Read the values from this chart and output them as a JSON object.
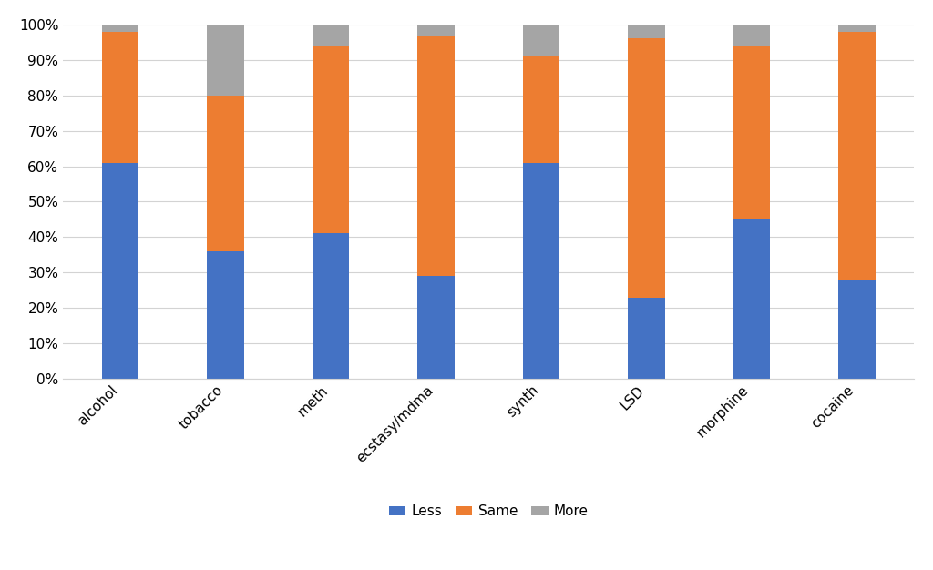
{
  "categories": [
    "alcohol",
    "tobacco",
    "meth",
    "ecstasy/mdma",
    "synth",
    "LSD",
    "morphine",
    "cocaine"
  ],
  "less": [
    61,
    36,
    41,
    29,
    61,
    23,
    45,
    28
  ],
  "same": [
    37,
    44,
    53,
    68,
    30,
    73,
    49,
    70
  ],
  "more": [
    2,
    20,
    6,
    3,
    9,
    4,
    6,
    2
  ],
  "colors": {
    "less": "#4472C4",
    "same": "#ED7D31",
    "more": "#A5A5A5"
  },
  "legend_labels": [
    "Less",
    "Same",
    "More"
  ],
  "ytick_labels": [
    "0%",
    "10%",
    "20%",
    "30%",
    "40%",
    "50%",
    "60%",
    "70%",
    "80%",
    "90%",
    "100%"
  ],
  "bar_width": 0.35,
  "figsize": [
    10.24,
    6.26
  ],
  "dpi": 100,
  "xtick_rotation": 45,
  "xtick_ha": "right"
}
